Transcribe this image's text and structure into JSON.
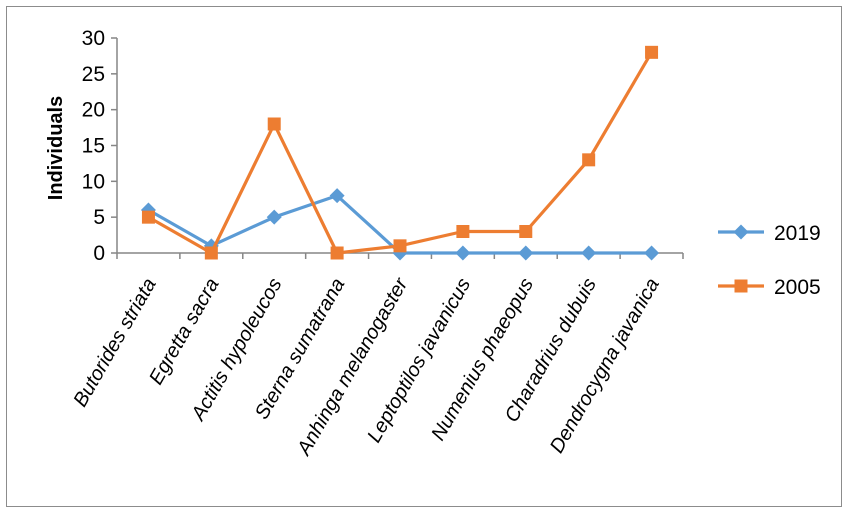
{
  "chart_data": {
    "type": "line",
    "title": "",
    "xlabel": "",
    "ylabel": "Individuals",
    "ylim": [
      0,
      30
    ],
    "yticks": [
      0,
      5,
      10,
      15,
      20,
      25,
      30
    ],
    "grid": false,
    "legend_position": "right",
    "categories": [
      "Butorides striata",
      "Egretta sacra",
      "Actitis hypoleucos",
      "Sterna sumatrana",
      "Anhinga melanogaster",
      "Leptoptilos javanicus",
      "Numenius phaeopus",
      "Charadrius dubuis",
      "Dendrocygna javanica"
    ],
    "series": [
      {
        "name": "2019",
        "color": "#5b9bd5",
        "marker": "diamond",
        "values": [
          6,
          1,
          5,
          8,
          0,
          0,
          0,
          0,
          0
        ]
      },
      {
        "name": "2005",
        "color": "#ed7d31",
        "marker": "square",
        "values": [
          5,
          0,
          18,
          0,
          1,
          3,
          3,
          13,
          28
        ]
      }
    ]
  }
}
